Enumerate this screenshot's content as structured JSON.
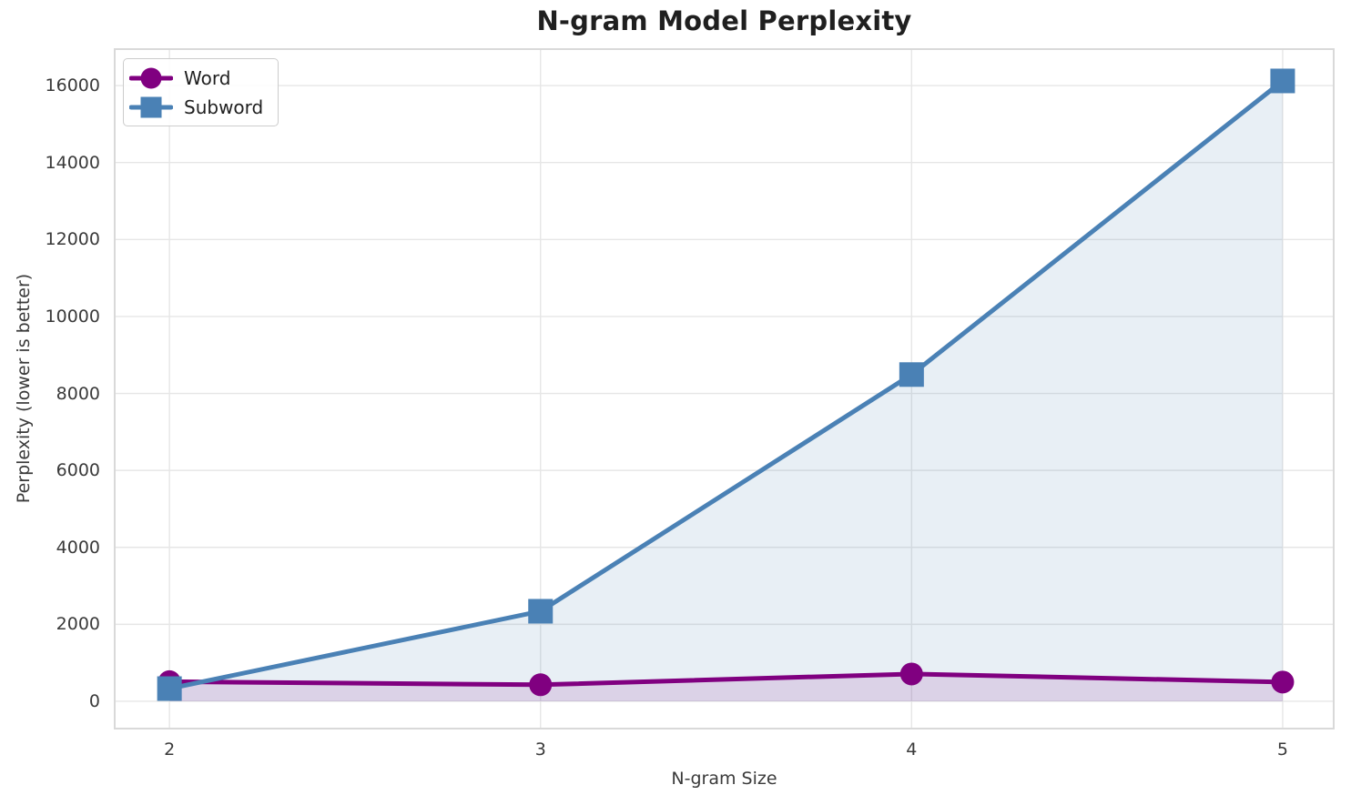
{
  "title": "N-gram Model Perplexity",
  "chart_data": {
    "type": "line",
    "title": "N-gram Model Perplexity",
    "xlabel": "N-gram Size",
    "ylabel": "Perplexity (lower is better)",
    "x": [
      2,
      3,
      4,
      5
    ],
    "series": [
      {
        "name": "Word",
        "marker": "circle",
        "color": "#800080",
        "fill_opacity": 0.12,
        "values": [
          510,
          430,
          710,
          500
        ]
      },
      {
        "name": "Subword",
        "marker": "square",
        "color": "#4a81b5",
        "fill_opacity": 0.13,
        "values": [
          330,
          2340,
          8490,
          16120
        ]
      }
    ],
    "xticks": [
      2,
      3,
      4,
      5
    ],
    "yticks": [
      0,
      2000,
      4000,
      6000,
      8000,
      10000,
      12000,
      14000,
      16000
    ],
    "xlim": [
      1.85,
      5.14
    ],
    "ylim": [
      -733,
      16970
    ],
    "grid": true,
    "legend_position": "upper left",
    "fill_to_zero": true
  },
  "colors": {
    "background": "#ffffff",
    "text": "#1f1f1f",
    "tick_text": "#3a3a3a",
    "grid": "#e6e6e6",
    "spine": "#d9d9d9"
  }
}
